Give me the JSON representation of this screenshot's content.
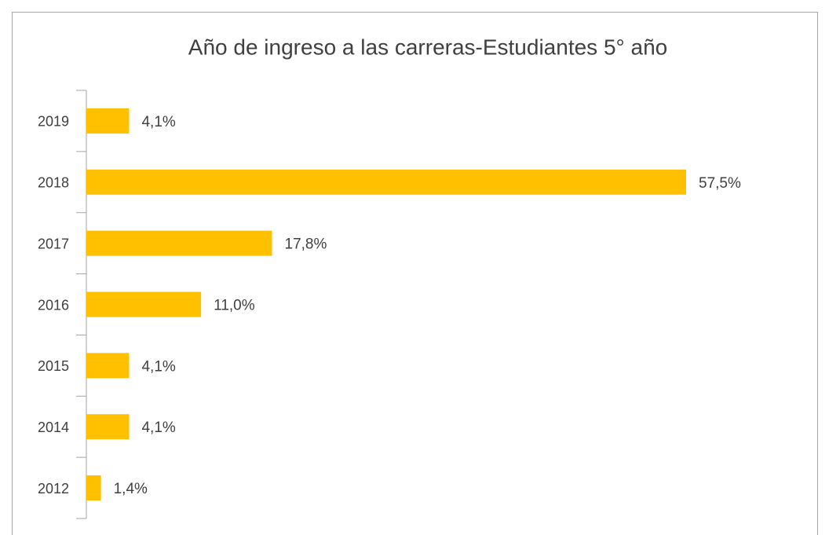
{
  "chart_data": {
    "type": "bar",
    "orientation": "horizontal",
    "title": "Año de ingreso a las carreras-Estudiantes 5° año",
    "categories": [
      "2019",
      "2018",
      "2017",
      "2016",
      "2015",
      "2014",
      "2012"
    ],
    "values": [
      4.1,
      57.5,
      17.8,
      11.0,
      4.1,
      4.1,
      1.4
    ],
    "value_labels": [
      "4,1%",
      "57,5%",
      "17,8%",
      "11,0%",
      "4,1%",
      "4,1%",
      "1,4%"
    ],
    "color": "#ffc000"
  }
}
